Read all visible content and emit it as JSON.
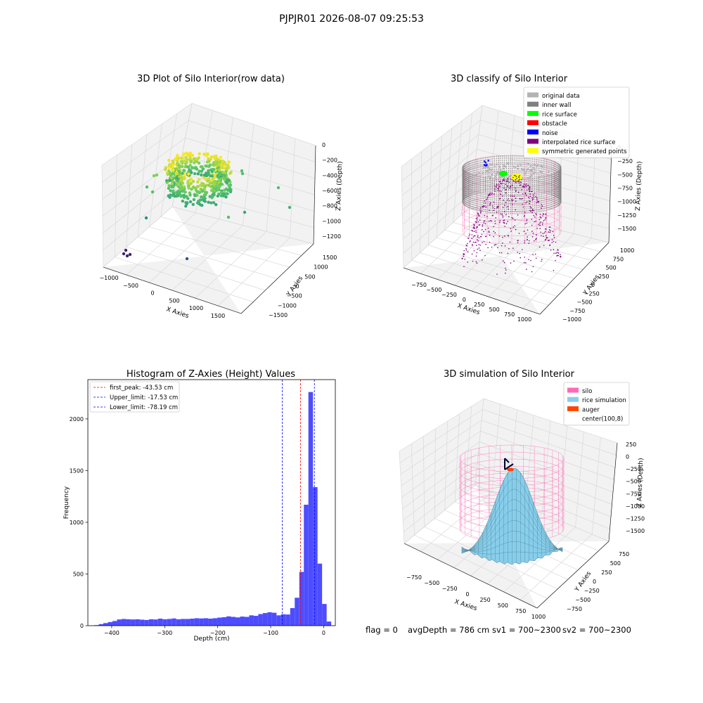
{
  "suptitle": "PJPJR01 2026-08-07 09:25:53",
  "status_line": {
    "flag": "flag = 0",
    "avg_depth": "avgDepth = 786 cm",
    "sv1": "sv1 = 700~2300",
    "sv2": "sv2 = 700~2300"
  },
  "colors": {
    "hist_bar": "#4d4dff",
    "first_peak": "#ff0000",
    "limits": "#0000ff",
    "original_data": "#b3b3b3",
    "inner_wall": "#808080",
    "rice_surface": "#00ff00",
    "obstacle": "#ff0000",
    "noise": "#0000ff",
    "interpolated": "#800080",
    "symmetric": "#ffff00",
    "silo": "#ff69b4",
    "rice_simulation": "#87ceeb",
    "auger": "#ff4500"
  },
  "chart_data": [
    {
      "type": "scatter",
      "projection": "3d",
      "title": "3D Plot of Silo Interior(row data)",
      "xlabel": "X Axies",
      "ylabel": "Y Axies",
      "zlabel": "Z Axies (Depth)",
      "xticks": [
        "−1000",
        "−500",
        "0",
        "500",
        "1000",
        "1500"
      ],
      "yticks": [
        "1500",
        "1000",
        "500",
        "0",
        "−500",
        "−1000",
        "−1500"
      ],
      "zticks": [
        "0",
        "−200",
        "−400",
        "−600",
        "−800",
        "−1000",
        "−1200"
      ],
      "xlim": [
        -1100,
        1900
      ],
      "ylim": [
        -1700,
        1700
      ],
      "zlim": [
        -1250,
        50
      ],
      "grid": true,
      "colormap": "viridis"
    },
    {
      "type": "scatter",
      "projection": "3d",
      "title": "3D classify of Silo Interior",
      "xlabel": "X Axies",
      "ylabel": "Y Axies",
      "zlabel": "Z Axies (Depth)",
      "xticks": [
        "−750",
        "−500",
        "−250",
        "0",
        "250",
        "500",
        "750",
        "1000"
      ],
      "yticks": [
        "1000",
        "750",
        "500",
        "250",
        "0",
        "−250",
        "−500",
        "−750",
        "−1000"
      ],
      "zticks": [
        "0",
        "−250",
        "−500",
        "−750",
        "−1000",
        "−1250",
        "−1500"
      ],
      "xlim": [
        -850,
        1050
      ],
      "ylim": [
        -1050,
        1050
      ],
      "zlim": [
        -1600,
        100
      ],
      "grid": true,
      "legend_position": "top-right",
      "series": [
        {
          "name": "original data",
          "color": "#b3b3b3"
        },
        {
          "name": "inner wall",
          "color": "#808080"
        },
        {
          "name": "rice surface",
          "color": "#00ff00"
        },
        {
          "name": "obstacle",
          "color": "#ff0000"
        },
        {
          "name": "noise",
          "color": "#0000ff"
        },
        {
          "name": "interpolated rice surface",
          "color": "#800080"
        },
        {
          "name": "symmetric generated points",
          "color": "#ffff00"
        }
      ]
    },
    {
      "type": "bar",
      "title": "Histogram of Z-Axies (Height) Values",
      "xlabel": "Depth (cm)",
      "ylabel": "Frequency",
      "xlim": [
        -445,
        22
      ],
      "ylim": [
        0,
        2380
      ],
      "xticks": [
        -400,
        -300,
        -200,
        -100,
        0
      ],
      "xtick_labels": [
        "−400",
        "−300",
        "−200",
        "−100",
        "0"
      ],
      "yticks": [
        0,
        500,
        1000,
        1500,
        2000
      ],
      "yticks_labels": [
        "0",
        "500",
        "1000",
        "1500",
        "2000"
      ],
      "bin_start": -433,
      "bin_width": 8.6,
      "values": [
        5,
        15,
        25,
        35,
        45,
        60,
        65,
        62,
        60,
        62,
        58,
        55,
        62,
        60,
        68,
        62,
        65,
        70,
        62,
        65,
        65,
        68,
        72,
        70,
        72,
        68,
        72,
        78,
        82,
        90,
        85,
        80,
        88,
        85,
        100,
        95,
        112,
        122,
        130,
        125,
        100,
        110,
        108,
        170,
        270,
        520,
        1170,
        2260,
        1340,
        600,
        210,
        40
      ],
      "legend_position": "top-left",
      "lines": [
        {
          "name": "first_peak: -43.53 cm",
          "x": -43.53,
          "color": "#ff0000"
        },
        {
          "name": "Upper_limit: -17.53 cm",
          "x": -17.53,
          "color": "#0000ff"
        },
        {
          "name": "Lower_limit: -78.19 cm",
          "x": -78.19,
          "color": "#0000ff"
        }
      ]
    },
    {
      "type": "surface",
      "projection": "3d",
      "title": "3D simulation of Silo Interior",
      "xlabel": "X Axies",
      "ylabel": "Y Axies",
      "zlabel": "Z Axies (Depth)",
      "xticks": [
        "−750",
        "−500",
        "−250",
        "0",
        "250",
        "500",
        "750",
        "1000"
      ],
      "yticks": [
        "750",
        "500",
        "250",
        "0",
        "−250",
        "−500",
        "−750"
      ],
      "zticks": [
        "250",
        "0",
        "−250",
        "−500",
        "−750",
        "−1000",
        "−1250",
        "−1500"
      ],
      "xlim": [
        -850,
        1050
      ],
      "ylim": [
        -850,
        850
      ],
      "zlim": [
        -1600,
        350
      ],
      "grid": true,
      "legend_position": "top-right",
      "series": [
        {
          "name": "silo",
          "color": "#ff69b4"
        },
        {
          "name": "rice simulation",
          "color": "#87ceeb"
        },
        {
          "name": "auger",
          "color": "#ff4500"
        },
        {
          "name": "center(100,8)",
          "color": "none"
        }
      ]
    }
  ]
}
